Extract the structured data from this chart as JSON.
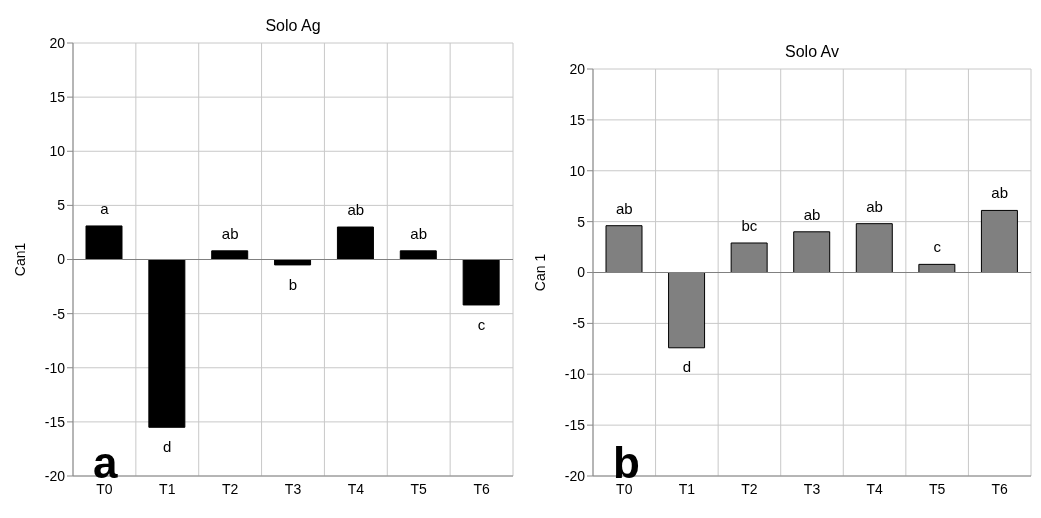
{
  "chart_data": [
    {
      "type": "bar",
      "title": "Solo Ag",
      "ylabel": "Can1",
      "categories": [
        "T0",
        "T1",
        "T2",
        "T3",
        "T4",
        "T5",
        "T6"
      ],
      "values": [
        3.1,
        -15.5,
        0.8,
        -0.5,
        3.0,
        0.8,
        -4.2
      ],
      "color": "#000000",
      "ylim": [
        -20,
        20
      ],
      "yticks": [
        -20,
        -15,
        -10,
        -5,
        0,
        5,
        10,
        15,
        20
      ],
      "grid": true,
      "ref_lines": [
        {
          "axis": "y",
          "value": 0,
          "color": "#808080"
        }
      ],
      "annotations": [
        {
          "text": "a",
          "x": "T0",
          "y": 3.1
        },
        {
          "text": "d",
          "x": "T1",
          "y": -15.5
        },
        {
          "text": "ab",
          "x": "T2",
          "y": 0.8
        },
        {
          "text": "b",
          "x": "T3",
          "y": -0.5
        },
        {
          "text": "ab",
          "x": "T4",
          "y": 3.0
        },
        {
          "text": "ab",
          "x": "T5",
          "y": 0.8
        },
        {
          "text": "c",
          "x": "T6",
          "y": -4.2
        },
        "a"
      ]
    },
    {
      "type": "bar",
      "title": "Solo Av",
      "ylabel": "Can 1",
      "categories": [
        "T0",
        "T1",
        "T2",
        "T3",
        "T4",
        "T5",
        "T6"
      ],
      "values": [
        4.6,
        -7.4,
        2.9,
        4.0,
        4.8,
        0.8,
        6.1
      ],
      "color": "#808080",
      "ylim": [
        -20,
        20
      ],
      "yticks": [
        -20,
        -15,
        -10,
        -5,
        0,
        5,
        10,
        15,
        20
      ],
      "grid": true,
      "ref_lines": [
        {
          "axis": "y",
          "value": 0,
          "color": "#808080"
        }
      ],
      "annotations": [
        {
          "text": "ab",
          "x": "T0",
          "y": 4.6
        },
        {
          "text": "d",
          "x": "T1",
          "y": -7.4
        },
        {
          "text": "bc",
          "x": "T2",
          "y": 2.9
        },
        {
          "text": "ab",
          "x": "T3",
          "y": 4.0
        },
        {
          "text": "ab",
          "x": "T4",
          "y": 4.8
        },
        {
          "text": "c",
          "x": "T5",
          "y": 0.8
        },
        {
          "text": "ab",
          "x": "T6",
          "y": 6.1
        },
        "b"
      ]
    }
  ]
}
